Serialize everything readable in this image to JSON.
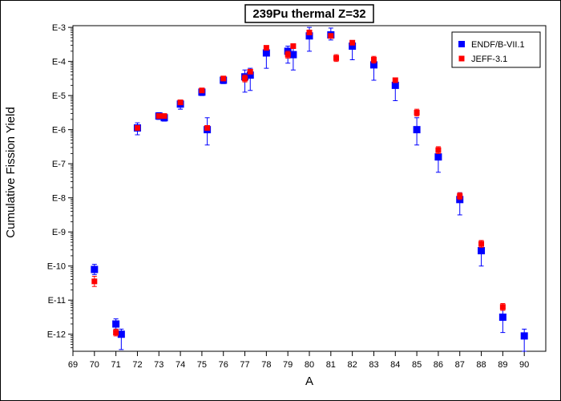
{
  "chart_data": {
    "type": "scatter",
    "title": "239Pu thermal Z=32",
    "xlabel": "A",
    "ylabel": "Cumulative Fission Yield",
    "xlim": [
      69,
      91
    ],
    "ylim_log10": [
      -12.5,
      -2.95
    ],
    "y_scale": "log",
    "x_ticks": [
      "69",
      "70",
      "71",
      "72",
      "73",
      "74",
      "75",
      "76",
      "77",
      "78",
      "79",
      "80",
      "81",
      "82",
      "83",
      "84",
      "85",
      "86",
      "87",
      "88",
      "89",
      "90"
    ],
    "y_ticks": [
      {
        "label": "E-3",
        "exp": -3
      },
      {
        "label": "E-4",
        "exp": -4
      },
      {
        "label": "E-5",
        "exp": -5
      },
      {
        "label": "E-6",
        "exp": -6
      },
      {
        "label": "E-7",
        "exp": -7
      },
      {
        "label": "E-8",
        "exp": -8
      },
      {
        "label": "E-9",
        "exp": -9
      },
      {
        "label": "E-10",
        "exp": -10
      },
      {
        "label": "E-11",
        "exp": -11
      },
      {
        "label": "E-12",
        "exp": -12
      }
    ],
    "grid": false,
    "legend_position": "top-right",
    "series": [
      {
        "name": "ENDF/B-VII.1",
        "color": "#0000ff",
        "marker": "square",
        "points": [
          {
            "x": 70,
            "log10y": -10.1,
            "err_lo": 0.15,
            "err_hi": 0.15
          },
          {
            "x": 71,
            "log10y": -11.7,
            "err_lo": 0.15,
            "err_hi": 0.15
          },
          {
            "x": 71.25,
            "log10y": -12.0,
            "err_lo": 0.45,
            "err_hi": 0.15
          },
          {
            "x": 72,
            "log10y": -5.95,
            "err_lo": 0.2,
            "err_hi": 0.15
          },
          {
            "x": 73,
            "log10y": -5.6,
            "err_lo": 0.1,
            "err_hi": 0.1
          },
          {
            "x": 73.25,
            "log10y": -5.65,
            "err_lo": 0.1,
            "err_hi": 0.1
          },
          {
            "x": 74,
            "log10y": -5.25,
            "err_lo": 0.15,
            "err_hi": 0.1
          },
          {
            "x": 75,
            "log10y": -4.9,
            "err_lo": 0.1,
            "err_hi": 0.1
          },
          {
            "x": 75.25,
            "log10y": -6.0,
            "err_lo": 0.45,
            "err_hi": 0.35
          },
          {
            "x": 76,
            "log10y": -4.55,
            "err_lo": 0.1,
            "err_hi": 0.05
          },
          {
            "x": 77,
            "log10y": -4.45,
            "err_lo": 0.45,
            "err_hi": 0.2
          },
          {
            "x": 77.25,
            "log10y": -4.4,
            "err_lo": 0.45,
            "err_hi": 0.2
          },
          {
            "x": 78,
            "log10y": -3.75,
            "err_lo": 0.45,
            "err_hi": 0.1
          },
          {
            "x": 79,
            "log10y": -3.7,
            "err_lo": 0.35,
            "err_hi": 0.15
          },
          {
            "x": 79.25,
            "log10y": -3.8,
            "err_lo": 0.45,
            "err_hi": 0.25
          },
          {
            "x": 80,
            "log10y": -3.25,
            "err_lo": 0.45,
            "err_hi": 0.25
          },
          {
            "x": 81,
            "log10y": -3.22,
            "err_lo": 0.15,
            "err_hi": 0.2
          },
          {
            "x": 82,
            "log10y": -3.55,
            "err_lo": 0.4,
            "err_hi": 0.15
          },
          {
            "x": 83,
            "log10y": -4.1,
            "err_lo": 0.45,
            "err_hi": 0.2
          },
          {
            "x": 84,
            "log10y": -4.7,
            "err_lo": 0.45,
            "err_hi": 0.2
          },
          {
            "x": 85,
            "log10y": -6.0,
            "err_lo": 0.45,
            "err_hi": 0.35
          },
          {
            "x": 86,
            "log10y": -6.8,
            "err_lo": 0.45,
            "err_hi": 0.25
          },
          {
            "x": 87,
            "log10y": -8.05,
            "err_lo": 0.45,
            "err_hi": 0.2
          },
          {
            "x": 88,
            "log10y": -9.55,
            "err_lo": 0.45,
            "err_hi": 0.2
          },
          {
            "x": 89,
            "log10y": -11.5,
            "err_lo": 0.45,
            "err_hi": 0.2
          },
          {
            "x": 90,
            "log10y": -12.05,
            "err_lo": 0.45,
            "err_hi": 0.2
          }
        ]
      },
      {
        "name": "JEFF-3.1",
        "color": "#ff0000",
        "marker": "square",
        "points": [
          {
            "x": 70,
            "log10y": -10.45,
            "err_lo": 0.15,
            "err_hi": 0.15
          },
          {
            "x": 71,
            "log10y": -11.95,
            "err_lo": 0.1,
            "err_hi": 0.1
          },
          {
            "x": 72,
            "log10y": -5.95,
            "err_lo": 0.05,
            "err_hi": 0.05
          },
          {
            "x": 73,
            "log10y": -5.6,
            "err_lo": 0.05,
            "err_hi": 0.05
          },
          {
            "x": 73.25,
            "log10y": -5.6,
            "err_lo": 0.05,
            "err_hi": 0.05
          },
          {
            "x": 74,
            "log10y": -5.2,
            "err_lo": 0.05,
            "err_hi": 0.05
          },
          {
            "x": 75,
            "log10y": -4.85,
            "err_lo": 0.05,
            "err_hi": 0.05
          },
          {
            "x": 75.25,
            "log10y": -5.95,
            "err_lo": 0.05,
            "err_hi": 0.05
          },
          {
            "x": 76,
            "log10y": -4.5,
            "err_lo": 0.05,
            "err_hi": 0.05
          },
          {
            "x": 77,
            "log10y": -4.5,
            "err_lo": 0.1,
            "err_hi": 0.1
          },
          {
            "x": 77.25,
            "log10y": -4.3,
            "err_lo": 0.05,
            "err_hi": 0.05
          },
          {
            "x": 78,
            "log10y": -3.6,
            "err_lo": 0.05,
            "err_hi": 0.05
          },
          {
            "x": 79,
            "log10y": -3.8,
            "err_lo": 0.1,
            "err_hi": 0.1
          },
          {
            "x": 79.25,
            "log10y": -3.55,
            "err_lo": 0.05,
            "err_hi": 0.05
          },
          {
            "x": 80,
            "log10y": -3.15,
            "err_lo": 0.05,
            "err_hi": 0.05
          },
          {
            "x": 81,
            "log10y": -3.25,
            "err_lo": 0.05,
            "err_hi": 0.05
          },
          {
            "x": 81.25,
            "log10y": -3.9,
            "err_lo": 0.1,
            "err_hi": 0.1
          },
          {
            "x": 82,
            "log10y": -3.45,
            "err_lo": 0.05,
            "err_hi": 0.05
          },
          {
            "x": 83,
            "log10y": -3.95,
            "err_lo": 0.1,
            "err_hi": 0.1
          },
          {
            "x": 84,
            "log10y": -4.55,
            "err_lo": 0.05,
            "err_hi": 0.05
          },
          {
            "x": 85,
            "log10y": -5.5,
            "err_lo": 0.1,
            "err_hi": 0.1
          },
          {
            "x": 86,
            "log10y": -6.6,
            "err_lo": 0.1,
            "err_hi": 0.1
          },
          {
            "x": 87,
            "log10y": -7.95,
            "err_lo": 0.1,
            "err_hi": 0.1
          },
          {
            "x": 88,
            "log10y": -9.35,
            "err_lo": 0.1,
            "err_hi": 0.1
          },
          {
            "x": 89,
            "log10y": -11.2,
            "err_lo": 0.1,
            "err_hi": 0.1
          }
        ]
      }
    ]
  }
}
